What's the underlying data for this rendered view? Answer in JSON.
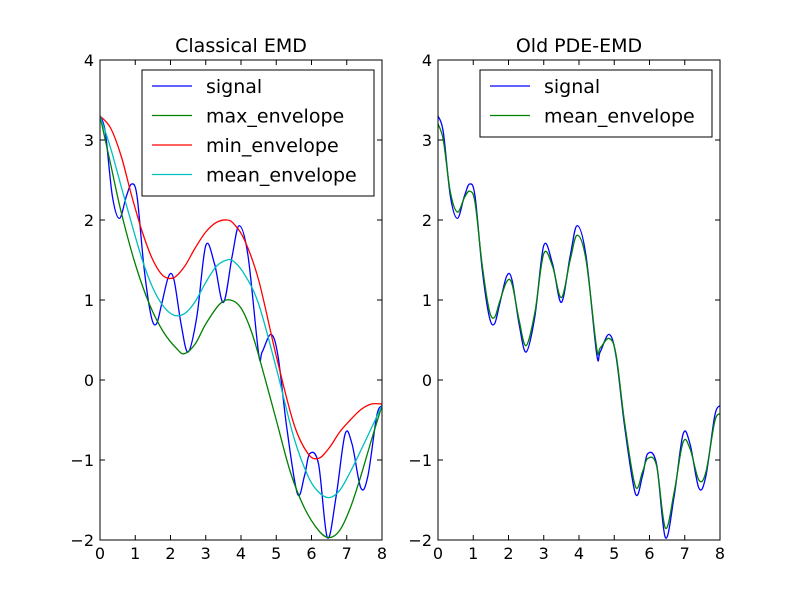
{
  "chart_data": [
    {
      "type": "line",
      "title": "Classical EMD",
      "xlabel": "",
      "ylabel": "",
      "xlim": [
        0,
        8
      ],
      "ylim": [
        -2,
        4
      ],
      "xticks": [
        0,
        1,
        2,
        3,
        4,
        5,
        6,
        7,
        8
      ],
      "yticks": [
        -2,
        -1,
        0,
        1,
        2,
        3,
        4
      ],
      "xtick_labels": [
        "0",
        "1",
        "2",
        "3",
        "4",
        "5",
        "6",
        "7",
        "8"
      ],
      "ytick_labels": [
        "−2",
        "−1",
        "0",
        "1",
        "2",
        "3",
        "4"
      ],
      "grid": false,
      "legend_position": "upper-right",
      "series": [
        {
          "name": "signal",
          "color": "#0000ff",
          "x": [
            0.0,
            0.15,
            0.35,
            0.55,
            0.75,
            0.9,
            1.05,
            1.25,
            1.45,
            1.6,
            1.75,
            1.95,
            2.1,
            2.3,
            2.5,
            2.75,
            3.0,
            3.25,
            3.5,
            3.75,
            3.95,
            4.2,
            4.5,
            4.6,
            4.85,
            5.05,
            5.3,
            5.6,
            5.8,
            5.95,
            6.2,
            6.45,
            6.7,
            6.95,
            7.15,
            7.4,
            7.6,
            7.85,
            8.0
          ],
          "y": [
            3.3,
            3.1,
            2.3,
            2.02,
            2.3,
            2.45,
            2.3,
            1.4,
            0.8,
            0.7,
            0.95,
            1.3,
            1.25,
            0.7,
            0.35,
            0.8,
            1.68,
            1.45,
            0.97,
            1.55,
            1.93,
            1.55,
            0.33,
            0.35,
            0.57,
            0.3,
            -0.6,
            -1.42,
            -1.2,
            -0.92,
            -1.05,
            -1.97,
            -1.45,
            -0.68,
            -0.8,
            -1.35,
            -1.2,
            -0.45,
            -0.32
          ]
        },
        {
          "name": "max_envelope",
          "color": "#008000",
          "x": [
            0.0,
            0.3,
            0.6,
            1.0,
            1.4,
            1.8,
            2.2,
            2.4,
            2.7,
            3.0,
            3.4,
            3.7,
            4.0,
            4.3,
            4.6,
            5.0,
            5.4,
            5.8,
            6.2,
            6.5,
            6.8,
            7.1,
            7.4,
            7.7,
            8.0
          ],
          "y": [
            3.3,
            2.7,
            2.1,
            1.45,
            0.95,
            0.6,
            0.38,
            0.33,
            0.45,
            0.7,
            0.95,
            1.0,
            0.9,
            0.6,
            0.15,
            -0.5,
            -1.15,
            -1.6,
            -1.88,
            -1.97,
            -1.88,
            -1.6,
            -1.2,
            -0.75,
            -0.32
          ]
        },
        {
          "name": "min_envelope",
          "color": "#ff0000",
          "x": [
            0.0,
            0.3,
            0.6,
            0.9,
            1.2,
            1.5,
            1.8,
            2.1,
            2.4,
            2.7,
            3.0,
            3.3,
            3.6,
            3.8,
            4.1,
            4.5,
            5.0,
            5.5,
            5.9,
            6.2,
            6.5,
            6.8,
            7.1,
            7.4,
            7.7,
            8.0
          ],
          "y": [
            3.3,
            3.15,
            2.8,
            2.3,
            1.85,
            1.5,
            1.3,
            1.28,
            1.42,
            1.65,
            1.85,
            1.97,
            2.0,
            1.95,
            1.75,
            1.25,
            0.3,
            -0.55,
            -0.92,
            -0.98,
            -0.85,
            -0.65,
            -0.5,
            -0.37,
            -0.3,
            -0.3
          ]
        },
        {
          "name": "mean_envelope",
          "color": "#00bfbf",
          "x": [
            0.0,
            0.3,
            0.6,
            0.9,
            1.2,
            1.5,
            1.8,
            2.1,
            2.4,
            2.7,
            3.0,
            3.3,
            3.6,
            3.8,
            4.1,
            4.5,
            5.0,
            5.5,
            5.9,
            6.2,
            6.5,
            6.8,
            7.1,
            7.4,
            7.7,
            8.0
          ],
          "y": [
            3.3,
            2.9,
            2.42,
            1.95,
            1.5,
            1.15,
            0.92,
            0.81,
            0.83,
            0.98,
            1.22,
            1.42,
            1.5,
            1.48,
            1.32,
            0.95,
            0.15,
            -0.72,
            -1.2,
            -1.4,
            -1.47,
            -1.38,
            -1.15,
            -0.88,
            -0.6,
            -0.32
          ]
        }
      ]
    },
    {
      "type": "line",
      "title": "Old PDE-EMD",
      "xlabel": "",
      "ylabel": "",
      "xlim": [
        0,
        8
      ],
      "ylim": [
        -2,
        4
      ],
      "xticks": [
        0,
        1,
        2,
        3,
        4,
        5,
        6,
        7,
        8
      ],
      "yticks": [
        -2,
        -1,
        0,
        1,
        2,
        3,
        4
      ],
      "xtick_labels": [
        "0",
        "1",
        "2",
        "3",
        "4",
        "5",
        "6",
        "7",
        "8"
      ],
      "ytick_labels": [
        "−2",
        "−1",
        "0",
        "1",
        "2",
        "3",
        "4"
      ],
      "grid": false,
      "legend_position": "upper-right",
      "series": [
        {
          "name": "signal",
          "color": "#0000ff",
          "x": [
            0.0,
            0.15,
            0.35,
            0.55,
            0.75,
            0.9,
            1.05,
            1.25,
            1.45,
            1.6,
            1.75,
            1.95,
            2.1,
            2.3,
            2.5,
            2.75,
            3.0,
            3.25,
            3.5,
            3.75,
            3.95,
            4.2,
            4.5,
            4.6,
            4.85,
            5.05,
            5.3,
            5.6,
            5.8,
            5.95,
            6.2,
            6.45,
            6.7,
            6.95,
            7.15,
            7.4,
            7.6,
            7.85,
            8.0
          ],
          "y": [
            3.3,
            3.1,
            2.3,
            2.02,
            2.3,
            2.45,
            2.3,
            1.4,
            0.8,
            0.7,
            0.95,
            1.3,
            1.25,
            0.7,
            0.35,
            0.8,
            1.68,
            1.45,
            0.97,
            1.55,
            1.93,
            1.55,
            0.33,
            0.35,
            0.57,
            0.3,
            -0.6,
            -1.42,
            -1.2,
            -0.92,
            -1.05,
            -1.97,
            -1.45,
            -0.68,
            -0.8,
            -1.35,
            -1.2,
            -0.45,
            -0.32
          ]
        },
        {
          "name": "mean_envelope",
          "color": "#008000",
          "x": [
            0.0,
            0.15,
            0.35,
            0.55,
            0.75,
            0.9,
            1.05,
            1.25,
            1.45,
            1.6,
            1.75,
            1.95,
            2.1,
            2.3,
            2.5,
            2.75,
            3.0,
            3.25,
            3.5,
            3.75,
            3.95,
            4.2,
            4.5,
            4.6,
            4.85,
            5.05,
            5.3,
            5.6,
            5.8,
            5.95,
            6.2,
            6.45,
            6.7,
            6.95,
            7.15,
            7.4,
            7.6,
            7.85,
            8.0
          ],
          "y": [
            3.2,
            3.0,
            2.35,
            2.1,
            2.28,
            2.36,
            2.22,
            1.45,
            0.88,
            0.78,
            0.98,
            1.23,
            1.2,
            0.75,
            0.43,
            0.85,
            1.58,
            1.42,
            1.03,
            1.5,
            1.81,
            1.5,
            0.4,
            0.4,
            0.52,
            0.32,
            -0.55,
            -1.33,
            -1.15,
            -0.98,
            -1.07,
            -1.85,
            -1.4,
            -0.78,
            -0.86,
            -1.25,
            -1.15,
            -0.52,
            -0.42
          ]
        }
      ]
    }
  ]
}
